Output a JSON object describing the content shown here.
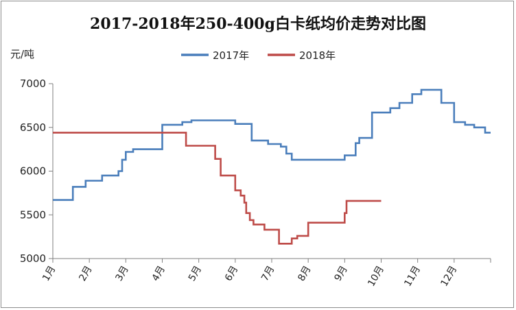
{
  "chart_data": {
    "type": "line",
    "title": "2017-2018年250-400g白卡纸均价走势对比图",
    "ylabel": "元/吨",
    "xlabel": "",
    "categories": [
      "1月",
      "2月",
      "3月",
      "4月",
      "5月",
      "6月",
      "7月",
      "8月",
      "9月",
      "10月",
      "11月",
      "12月"
    ],
    "ylim": [
      5000,
      7000
    ],
    "yticks": [
      5000,
      5500,
      6000,
      6500,
      7000
    ],
    "legend_position": "top-center",
    "step": true,
    "series": [
      {
        "name": "2017年",
        "color": "#4a7ebb",
        "points": [
          [
            1.0,
            5670
          ],
          [
            1.55,
            5670
          ],
          [
            1.55,
            5820
          ],
          [
            1.9,
            5820
          ],
          [
            1.9,
            5890
          ],
          [
            2.35,
            5890
          ],
          [
            2.35,
            5950
          ],
          [
            2.8,
            5950
          ],
          [
            2.8,
            6000
          ],
          [
            2.9,
            6000
          ],
          [
            2.9,
            6130
          ],
          [
            3.0,
            6130
          ],
          [
            3.0,
            6220
          ],
          [
            3.2,
            6220
          ],
          [
            3.2,
            6250
          ],
          [
            4.0,
            6250
          ],
          [
            4.0,
            6530
          ],
          [
            4.55,
            6530
          ],
          [
            4.55,
            6560
          ],
          [
            4.8,
            6560
          ],
          [
            4.8,
            6580
          ],
          [
            6.0,
            6580
          ],
          [
            6.0,
            6540
          ],
          [
            6.45,
            6540
          ],
          [
            6.45,
            6350
          ],
          [
            6.9,
            6350
          ],
          [
            6.9,
            6310
          ],
          [
            7.25,
            6310
          ],
          [
            7.25,
            6280
          ],
          [
            7.4,
            6280
          ],
          [
            7.4,
            6200
          ],
          [
            7.55,
            6200
          ],
          [
            7.55,
            6130
          ],
          [
            9.0,
            6130
          ],
          [
            9.0,
            6180
          ],
          [
            9.3,
            6180
          ],
          [
            9.3,
            6320
          ],
          [
            9.4,
            6320
          ],
          [
            9.4,
            6380
          ],
          [
            9.75,
            6380
          ],
          [
            9.75,
            6670
          ],
          [
            10.25,
            6670
          ],
          [
            10.25,
            6720
          ],
          [
            10.5,
            6720
          ],
          [
            10.5,
            6780
          ],
          [
            10.85,
            6780
          ],
          [
            10.85,
            6880
          ],
          [
            11.1,
            6880
          ],
          [
            11.1,
            6930
          ],
          [
            11.65,
            6930
          ],
          [
            11.65,
            6780
          ],
          [
            12.0,
            6780
          ],
          [
            12.0,
            6560
          ],
          [
            12.3,
            6560
          ],
          [
            12.3,
            6530
          ],
          [
            12.55,
            6530
          ],
          [
            12.55,
            6500
          ],
          [
            12.85,
            6500
          ],
          [
            12.85,
            6440
          ],
          [
            13.0,
            6440
          ]
        ]
      },
      {
        "name": "2018年",
        "color": "#be4b48",
        "points": [
          [
            1.0,
            6440
          ],
          [
            4.65,
            6440
          ],
          [
            4.65,
            6290
          ],
          [
            5.45,
            6290
          ],
          [
            5.45,
            6140
          ],
          [
            5.6,
            6140
          ],
          [
            5.6,
            5950
          ],
          [
            6.0,
            5950
          ],
          [
            6.0,
            5780
          ],
          [
            6.15,
            5780
          ],
          [
            6.15,
            5720
          ],
          [
            6.25,
            5720
          ],
          [
            6.25,
            5640
          ],
          [
            6.3,
            5640
          ],
          [
            6.3,
            5520
          ],
          [
            6.4,
            5520
          ],
          [
            6.4,
            5440
          ],
          [
            6.5,
            5440
          ],
          [
            6.5,
            5390
          ],
          [
            6.8,
            5390
          ],
          [
            6.8,
            5330
          ],
          [
            7.2,
            5330
          ],
          [
            7.2,
            5170
          ],
          [
            7.55,
            5170
          ],
          [
            7.55,
            5230
          ],
          [
            7.7,
            5230
          ],
          [
            7.7,
            5260
          ],
          [
            8.0,
            5260
          ],
          [
            8.0,
            5410
          ],
          [
            9.0,
            5410
          ],
          [
            9.0,
            5520
          ],
          [
            9.05,
            5520
          ],
          [
            9.05,
            5660
          ],
          [
            10.0,
            5660
          ]
        ]
      }
    ]
  }
}
